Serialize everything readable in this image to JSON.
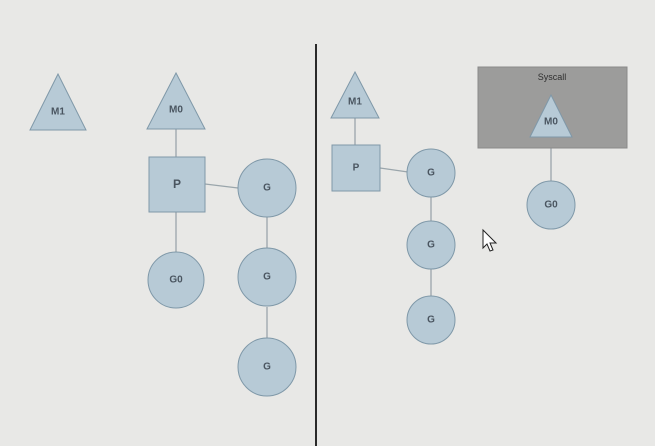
{
  "diagram": {
    "left": {
      "m1": "M1",
      "m0": "M0",
      "p": "P",
      "g0": "G0",
      "g_run": "G",
      "g_queue_1": "G",
      "g_queue_2": "G"
    },
    "right": {
      "m1": "M1",
      "p": "P",
      "g_run": "G",
      "g_queue_1": "G",
      "g_queue_2": "G",
      "syscall_title": "Syscall",
      "syscall_m0": "M0",
      "syscall_g0": "G0"
    }
  },
  "colors": {
    "node_fill": "#b7cad6",
    "syscall_box": "#9c9c9b",
    "background": "#e8e8e6"
  }
}
